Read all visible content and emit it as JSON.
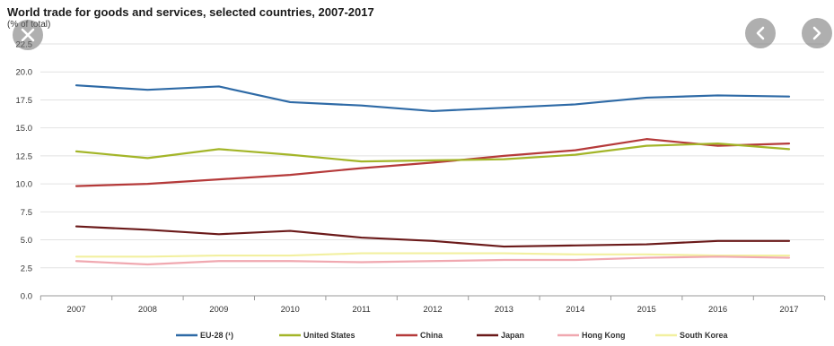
{
  "chart_data": {
    "type": "line",
    "title": "World trade for goods and services, selected countries, 2007-2017",
    "subtitle": "(% of total)",
    "xlabel": "",
    "ylabel": "",
    "x": [
      "2007",
      "2008",
      "2009",
      "2010",
      "2011",
      "2012",
      "2013",
      "2014",
      "2015",
      "2016",
      "2017"
    ],
    "ylim": [
      0,
      22.5
    ],
    "yticks": [
      "0.0",
      "2.5",
      "5.0",
      "7.5",
      "10.0",
      "12.5",
      "15.0",
      "17.5",
      "20.0",
      "22.5"
    ],
    "grid": true,
    "legend_position": "bottom",
    "series": [
      {
        "name": "EU-28 (¹)",
        "color": "#2e6aa6",
        "values": [
          18.8,
          18.4,
          18.7,
          17.3,
          17.0,
          16.5,
          16.8,
          17.1,
          17.7,
          17.9,
          17.8
        ]
      },
      {
        "name": "United States",
        "color": "#a3b528",
        "values": [
          12.9,
          12.3,
          13.1,
          12.6,
          12.0,
          12.1,
          12.2,
          12.6,
          13.4,
          13.6,
          13.1
        ]
      },
      {
        "name": "China",
        "color": "#b53a3a",
        "values": [
          9.8,
          10.0,
          10.4,
          10.8,
          11.4,
          11.9,
          12.5,
          13.0,
          14.0,
          13.4,
          13.6
        ]
      },
      {
        "name": "Japan",
        "color": "#6b1a1a",
        "values": [
          6.2,
          5.9,
          5.5,
          5.8,
          5.2,
          4.9,
          4.4,
          4.5,
          4.6,
          4.9,
          4.9
        ]
      },
      {
        "name": "Hong Kong",
        "color": "#f0a8b0",
        "values": [
          3.1,
          2.8,
          3.1,
          3.1,
          3.0,
          3.1,
          3.2,
          3.2,
          3.4,
          3.5,
          3.4
        ]
      },
      {
        "name": "South Korea",
        "color": "#f2f0a0",
        "values": [
          3.5,
          3.5,
          3.6,
          3.6,
          3.8,
          3.8,
          3.8,
          3.7,
          3.7,
          3.6,
          3.6
        ]
      }
    ]
  },
  "overlay": {
    "close_icon": "close-icon",
    "prev_icon": "chevron-left-icon",
    "next_icon": "chevron-right-icon"
  }
}
